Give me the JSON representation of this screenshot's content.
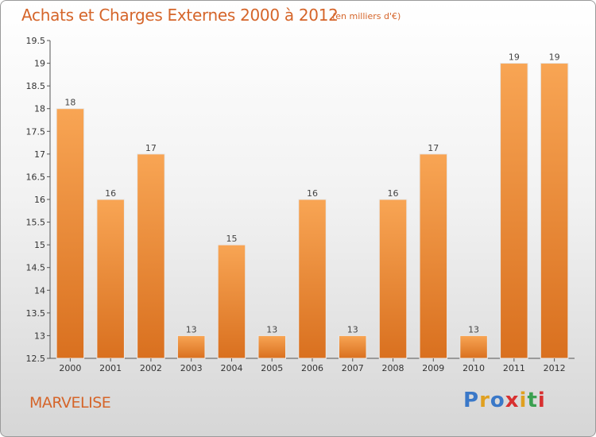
{
  "header": {
    "title": "Achats et Charges Externes 2000 à 2012",
    "unit": "(en milliers d'€)"
  },
  "footer": {
    "place": "MARVELISE",
    "logo": [
      "P",
      "r",
      "o",
      "x",
      "i",
      "t",
      "i"
    ]
  },
  "colors": {
    "accent": "#d5652a",
    "bar_light": "#f8a554",
    "bar_dark": "#d9701f",
    "logo": [
      "#3a78c8",
      "#e0a020",
      "#3a78c8",
      "#d83030",
      "#e0a020",
      "#3aa050",
      "#d83030"
    ]
  },
  "chart_data": {
    "type": "bar",
    "title": "Achats et Charges Externes 2000 à 2012",
    "subtitle": "(en milliers d'€)",
    "categories": [
      "2000",
      "2001",
      "2002",
      "2003",
      "2004",
      "2005",
      "2006",
      "2007",
      "2008",
      "2009",
      "2010",
      "2011",
      "2012"
    ],
    "values": [
      18,
      16,
      17,
      13,
      15,
      13,
      16,
      13,
      16,
      17,
      13,
      19,
      19
    ],
    "ylim": [
      12.5,
      19.5
    ],
    "yticks": [
      "12.5",
      "13",
      "13.5",
      "14",
      "14.5",
      "15",
      "15.5",
      "16",
      "16.5",
      "17",
      "17.5",
      "18",
      "18.5",
      "19",
      "19.5"
    ],
    "grid": false
  }
}
